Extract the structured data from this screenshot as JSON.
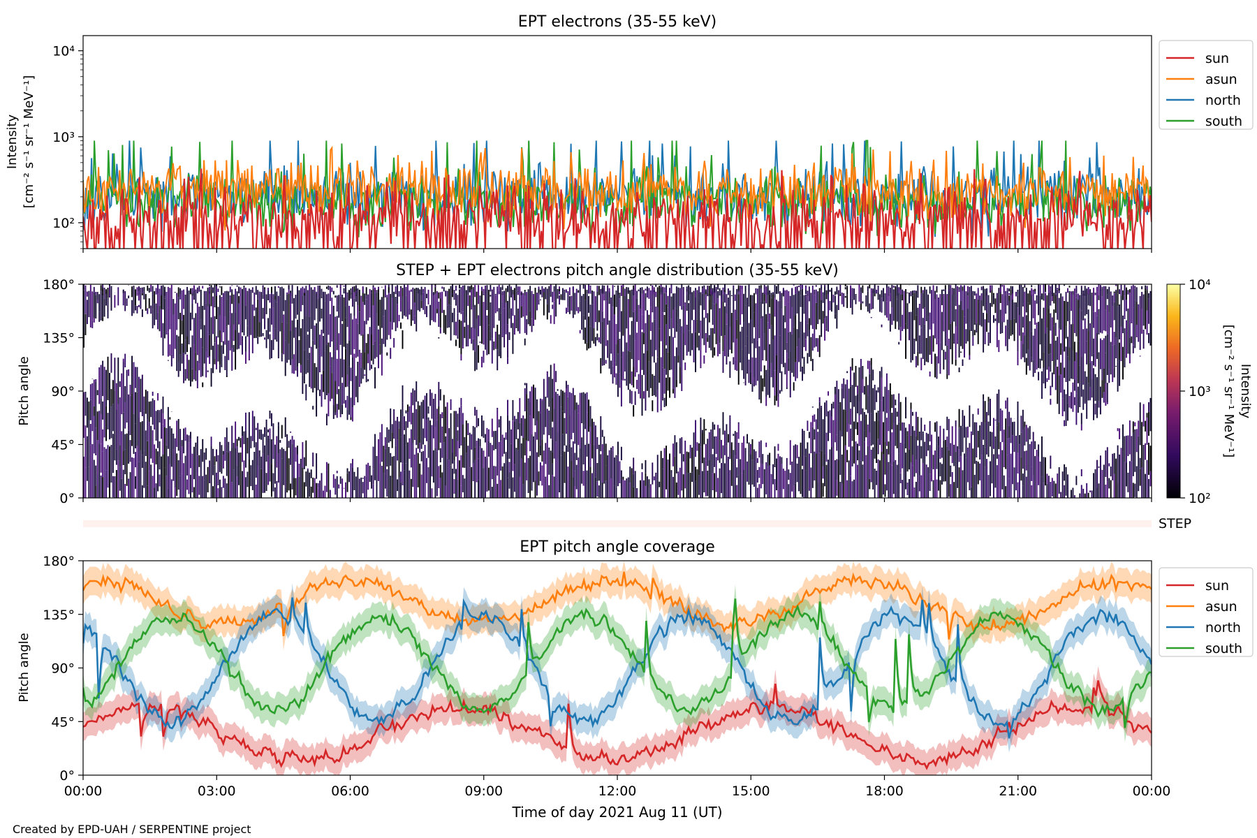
{
  "footer": "Created by EPD-UAH / SERPENTINE project",
  "xlabel": "Time of day 2021 Aug 11 (UT)",
  "x_ticks": [
    "00:00",
    "03:00",
    "06:00",
    "09:00",
    "12:00",
    "15:00",
    "18:00",
    "21:00",
    "00:00"
  ],
  "colors": {
    "sun": "#d62728",
    "asun": "#ff7f0e",
    "north": "#1f77b4",
    "south": "#2ca02c"
  },
  "chart_data": [
    {
      "type": "line",
      "title": "EPT electrons (35-55 keV)",
      "ylabel_line1": "Intensity",
      "ylabel_line2": "[cm⁻² s⁻¹ sr⁻¹ MeV⁻¹]",
      "yscale": "log",
      "ylim": [
        50,
        15000
      ],
      "y_ticks": [
        {
          "value": 100,
          "label": "10²"
        },
        {
          "value": 1000,
          "label": "10³"
        },
        {
          "value": 10000,
          "label": "10⁴"
        }
      ],
      "x_range_hours": [
        0,
        24
      ],
      "legend": {
        "placement": "outside-right",
        "entries": [
          "sun",
          "asun",
          "north",
          "south"
        ]
      },
      "series": [
        {
          "name": "sun",
          "color": "#d62728",
          "typical_range": [
            50,
            300
          ],
          "median": 120
        },
        {
          "name": "asun",
          "color": "#ff7f0e",
          "typical_range": [
            80,
            500
          ],
          "median": 230
        },
        {
          "name": "north",
          "color": "#1f77b4",
          "typical_range": [
            60,
            700
          ],
          "median": 200
        },
        {
          "name": "south",
          "color": "#2ca02c",
          "typical_range": [
            60,
            700
          ],
          "median": 180
        }
      ],
      "draw_order": [
        "north",
        "south",
        "asun",
        "sun"
      ]
    },
    {
      "type": "heatmap",
      "title": "STEP + EPT electrons pitch angle distribution (35-55 keV)",
      "ylabel": "Pitch angle",
      "ylim": [
        0,
        180
      ],
      "y_ticks": [
        "0°",
        "45°",
        "90°",
        "135°",
        "180°"
      ],
      "x_range_hours": [
        0,
        24
      ],
      "colorbar": {
        "label": "Intensity",
        "units": "[cm⁻² s⁻¹ sr⁻¹ MeV⁻¹]",
        "scale": "log",
        "range": [
          100,
          10000
        ],
        "ticks": [
          {
            "value": 100,
            "label": "10²"
          },
          {
            "value": 1000,
            "label": "10³"
          },
          {
            "value": 10000,
            "label": "10⁴"
          }
        ],
        "colormap": "inferno"
      },
      "typical_intensity": 200
    },
    {
      "type": "line",
      "title": "",
      "strip_label": "STEP",
      "x_range_hours": [
        0,
        24
      ]
    },
    {
      "type": "line",
      "title": "EPT pitch angle coverage",
      "ylabel": "Pitch angle",
      "ylim": [
        0,
        180
      ],
      "y_ticks": [
        "0°",
        "45°",
        "90°",
        "135°",
        "180°"
      ],
      "x_range_hours": [
        0,
        24
      ],
      "legend": {
        "placement": "outside-right",
        "entries": [
          "sun",
          "asun",
          "north",
          "south"
        ]
      },
      "band_half_width_deg": 12,
      "series": [
        {
          "name": "sun",
          "color": "#d62728",
          "typical_range": [
            10,
            90
          ],
          "median": 35
        },
        {
          "name": "asun",
          "color": "#ff7f0e",
          "typical_range": [
            95,
            180
          ],
          "median": 145
        },
        {
          "name": "north",
          "color": "#1f77b4",
          "typical_range": [
            20,
            165
          ],
          "median": 90
        },
        {
          "name": "south",
          "color": "#2ca02c",
          "typical_range": [
            20,
            165
          ],
          "median": 95
        }
      ]
    }
  ]
}
